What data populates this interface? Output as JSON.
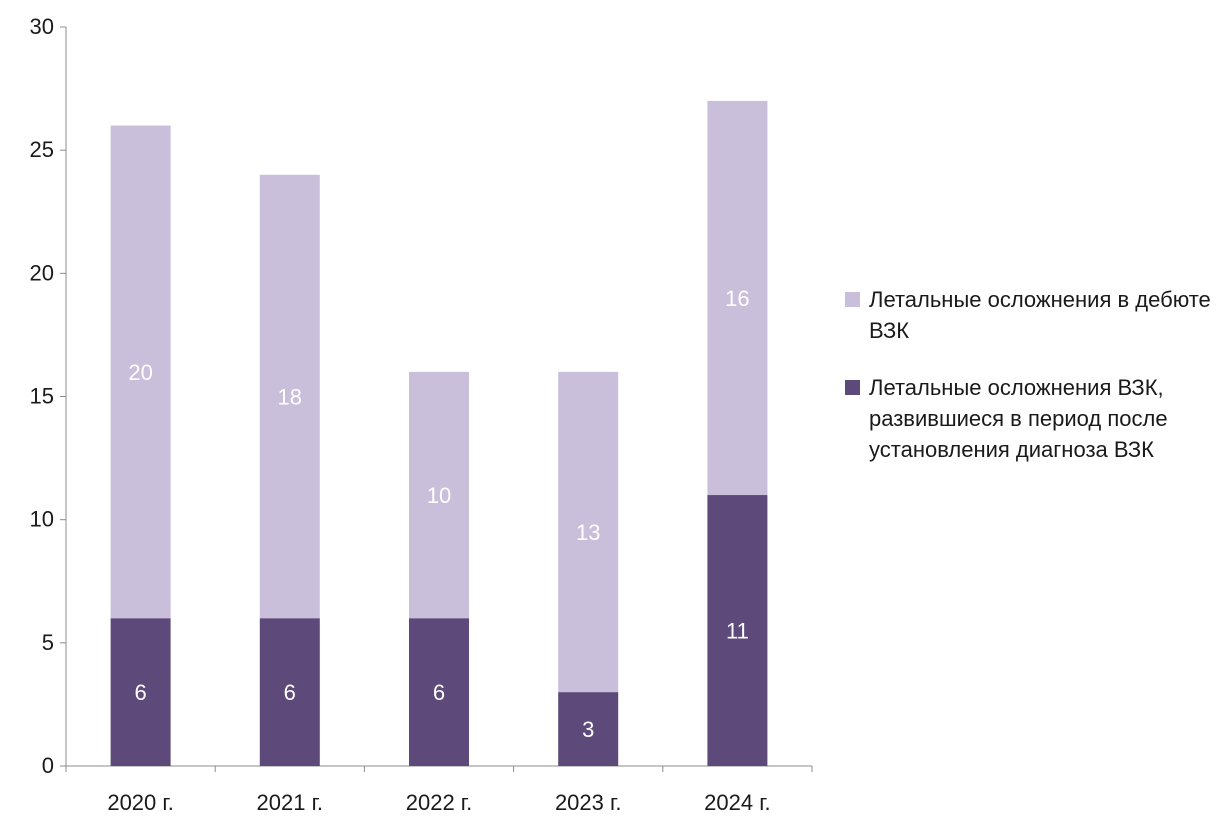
{
  "chart_data": {
    "type": "bar",
    "stacked": true,
    "categories": [
      "2020 г.",
      "2021 г.",
      "2022 г.",
      "2023 г.",
      "2024 г."
    ],
    "series": [
      {
        "name": "Летальные осложнения ВЗК, развившиеся в период после установления диагноза ВЗК",
        "values": [
          6,
          6,
          6,
          3,
          11
        ],
        "color": "#5e4a7a"
      },
      {
        "name": "Летальные осложнения в дебюте ВЗК",
        "values": [
          20,
          18,
          10,
          13,
          16
        ],
        "color": "#c9bfdb"
      }
    ],
    "ylim": [
      0,
      30
    ],
    "yticks": [
      0,
      5,
      10,
      15,
      20,
      25,
      30
    ],
    "grid": false,
    "legend_position": "right",
    "title": "",
    "xlabel": "",
    "ylabel": ""
  },
  "legend": {
    "items": [
      {
        "label": "Летальные осложнения в дебюте ВЗК",
        "color": "#c9bfdb"
      },
      {
        "label": "Летальные осложнения ВЗК, развившиеся в период после установления диагноза ВЗК",
        "color": "#5e4a7a"
      }
    ]
  }
}
